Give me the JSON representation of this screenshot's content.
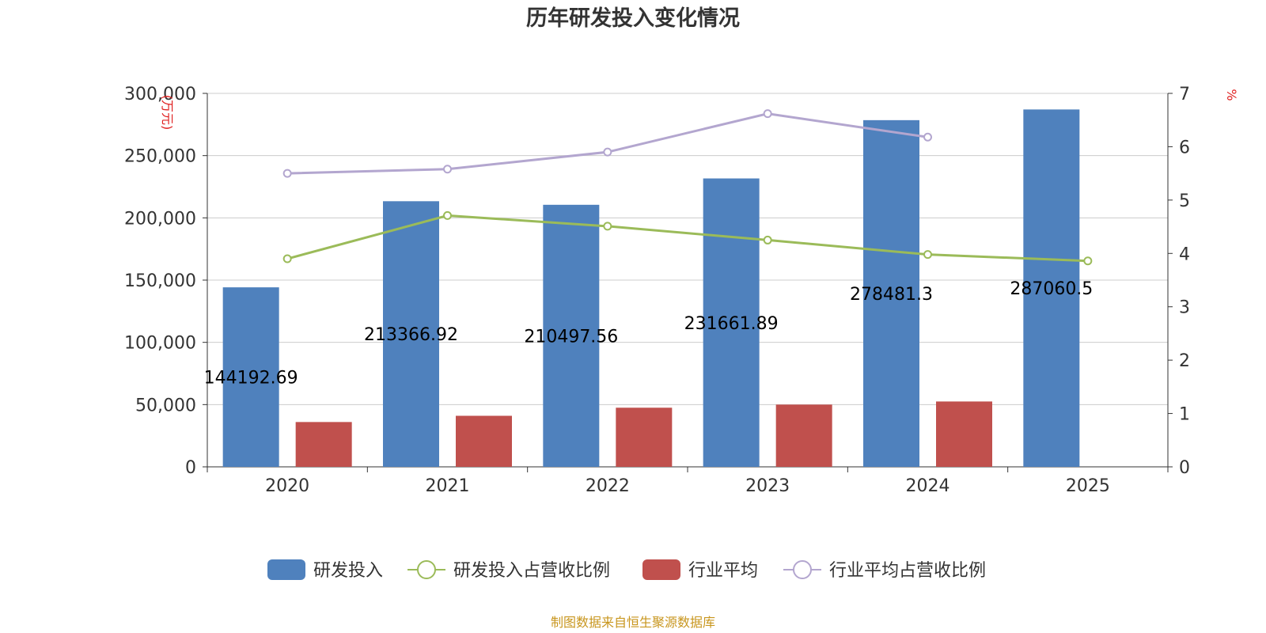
{
  "chart_data": {
    "type": "bar",
    "title": "历年研发投入变化情况",
    "categories": [
      "2020",
      "2021",
      "2022",
      "2023",
      "2024",
      "2025"
    ],
    "left_axis": {
      "unit": "万元",
      "min": 0,
      "max": 300000,
      "ticks": [
        "0",
        "50,000",
        "100,000",
        "150,000",
        "200,000",
        "250,000",
        "300,000"
      ]
    },
    "right_axis": {
      "unit": "%",
      "min": 0,
      "max": 7,
      "ticks": [
        "0",
        "1",
        "2",
        "3",
        "4",
        "5",
        "6",
        "7"
      ]
    },
    "series": [
      {
        "name": "研发投入",
        "kind": "bar",
        "axis": "left",
        "color": "#4f81bd",
        "values": [
          144192.69,
          213366.92,
          210497.56,
          231661.89,
          278481.3,
          287060.5
        ],
        "labels": [
          "144192.69",
          "213366.92",
          "210497.56",
          "231661.89",
          "278481.3",
          "287060.5"
        ]
      },
      {
        "name": "研发投入占营收比例",
        "kind": "line",
        "axis": "right",
        "color": "#9bbb59",
        "values": [
          3.9,
          4.71,
          4.51,
          4.25,
          3.98,
          3.86
        ]
      },
      {
        "name": "行业平均",
        "kind": "bar",
        "axis": "left",
        "color": "#c0504d",
        "values": [
          36000,
          41000,
          47500,
          50000,
          52500,
          null
        ]
      },
      {
        "name": "行业平均占营收比例",
        "kind": "line",
        "axis": "right",
        "color": "#b3a6cf",
        "values": [
          5.5,
          5.58,
          5.9,
          6.62,
          6.18,
          null
        ]
      }
    ],
    "legend_position": "bottom-center",
    "grid": true
  },
  "footer": {
    "source": "制图数据来自恒生聚源数据库"
  }
}
